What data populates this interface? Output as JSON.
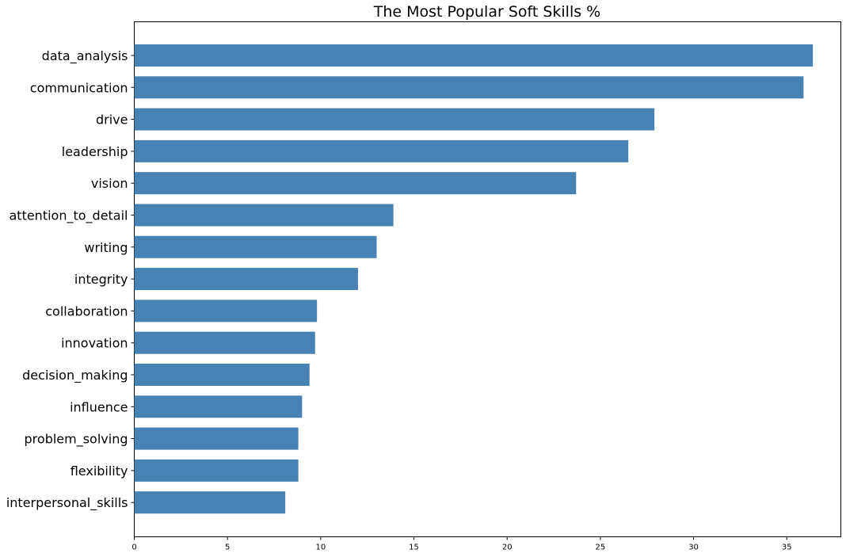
{
  "chart_data": {
    "type": "bar",
    "orientation": "horizontal",
    "title": "The Most Popular Soft Skills %",
    "xlabel": "",
    "ylabel": "",
    "categories": [
      "data_analysis",
      "communication",
      "drive",
      "leadership",
      "vision",
      "attention_to_detail",
      "writing",
      "integrity",
      "collaboration",
      "innovation",
      "decision_making",
      "influence",
      "problem_solving",
      "flexibility",
      "interpersonal_skills"
    ],
    "values": [
      36.4,
      35.9,
      27.9,
      26.5,
      23.7,
      13.9,
      13.0,
      12.0,
      9.8,
      9.7,
      9.4,
      9.0,
      8.8,
      8.8,
      8.1
    ],
    "xlim": [
      0,
      37.9
    ],
    "xticks": [
      0,
      5,
      10,
      15,
      20,
      25,
      30,
      35
    ],
    "bar_color": "#4682b4",
    "grid": false,
    "legend": "none"
  }
}
